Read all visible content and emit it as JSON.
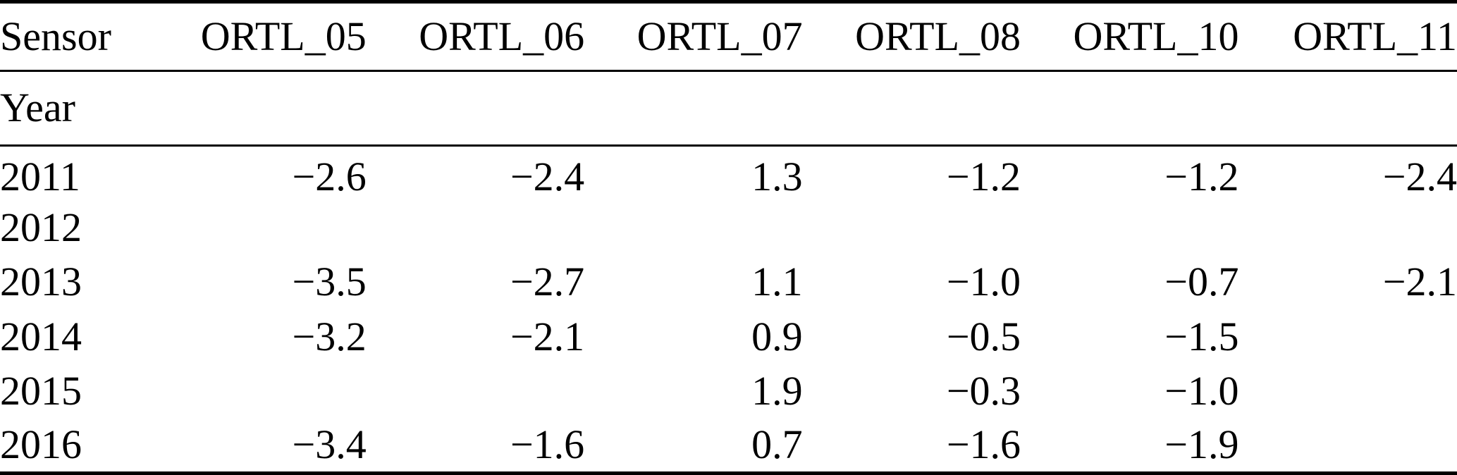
{
  "page": {
    "background_color": "#ffffff",
    "text_color": "#000000",
    "rule_color": "#000000"
  },
  "table": {
    "header": {
      "sensor_label": "Sensor",
      "columns": [
        "ORTL_05",
        "ORTL_06",
        "ORTL_07",
        "ORTL_08",
        "ORTL_10",
        "ORTL_11"
      ]
    },
    "group_label": "Year",
    "rows": [
      {
        "year": "2011",
        "values": [
          "−2.6",
          "−2.4",
          "1.3",
          "−1.2",
          "−1.2",
          "−2.4"
        ]
      },
      {
        "year": "2012",
        "values": [
          "",
          "",
          "",
          "",
          "",
          ""
        ]
      },
      {
        "year": "2013",
        "values": [
          "−3.5",
          "−2.7",
          "1.1",
          "−1.0",
          "−0.7",
          "−2.1"
        ]
      },
      {
        "year": "2014",
        "values": [
          "−3.2",
          "−2.1",
          "0.9",
          "−0.5",
          "−1.5",
          ""
        ]
      },
      {
        "year": "2015",
        "values": [
          "",
          "",
          "1.9",
          "−0.3",
          "−1.0",
          ""
        ]
      },
      {
        "year": "2016",
        "values": [
          "−3.4",
          "−1.6",
          "0.7",
          "−1.6",
          "−1.9",
          ""
        ]
      }
    ]
  }
}
